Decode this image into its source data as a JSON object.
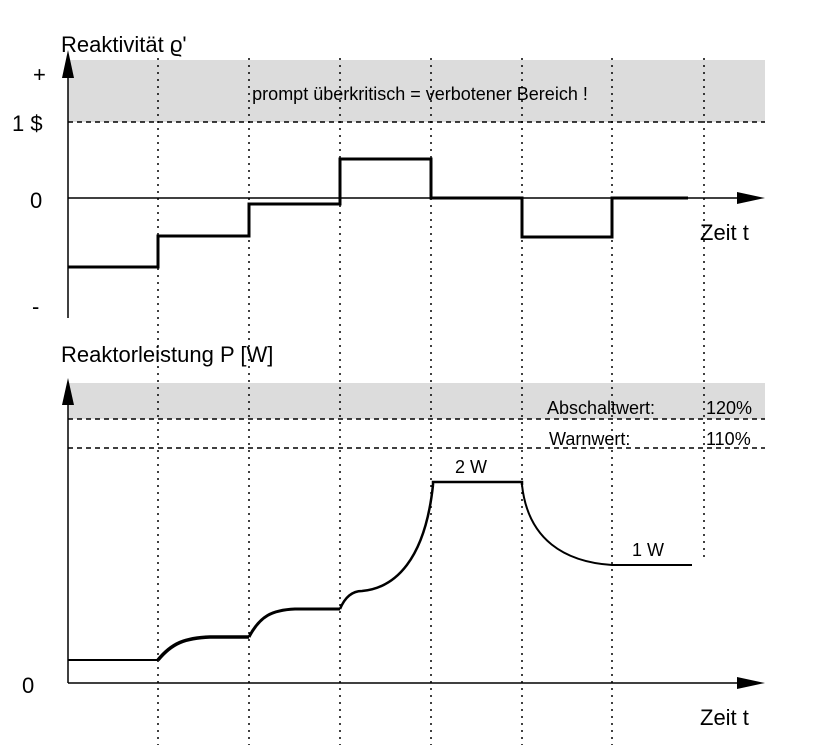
{
  "top_panel": {
    "axis_title": "Reaktivität ϱ'",
    "tick_plus": "+",
    "tick_one_dollar": "1 $",
    "tick_zero": "0",
    "tick_minus": "-",
    "x_label": "Zeit  t",
    "forbidden_zone_label": "prompt überkritisch = verbotener Bereich !"
  },
  "bottom_panel": {
    "axis_title": "Reaktorleistung  P [W]",
    "tick_zero": "0",
    "x_label": "Zeit  t",
    "shutdown_label": "Abschaltwert:",
    "shutdown_value": "120%",
    "warning_label": "Warnwert:",
    "warning_value": "110%",
    "peak_label": "2 W",
    "final_label": "1 W"
  },
  "colors": {
    "zone_fill": "#dcdcdc",
    "line": "#000000"
  }
}
